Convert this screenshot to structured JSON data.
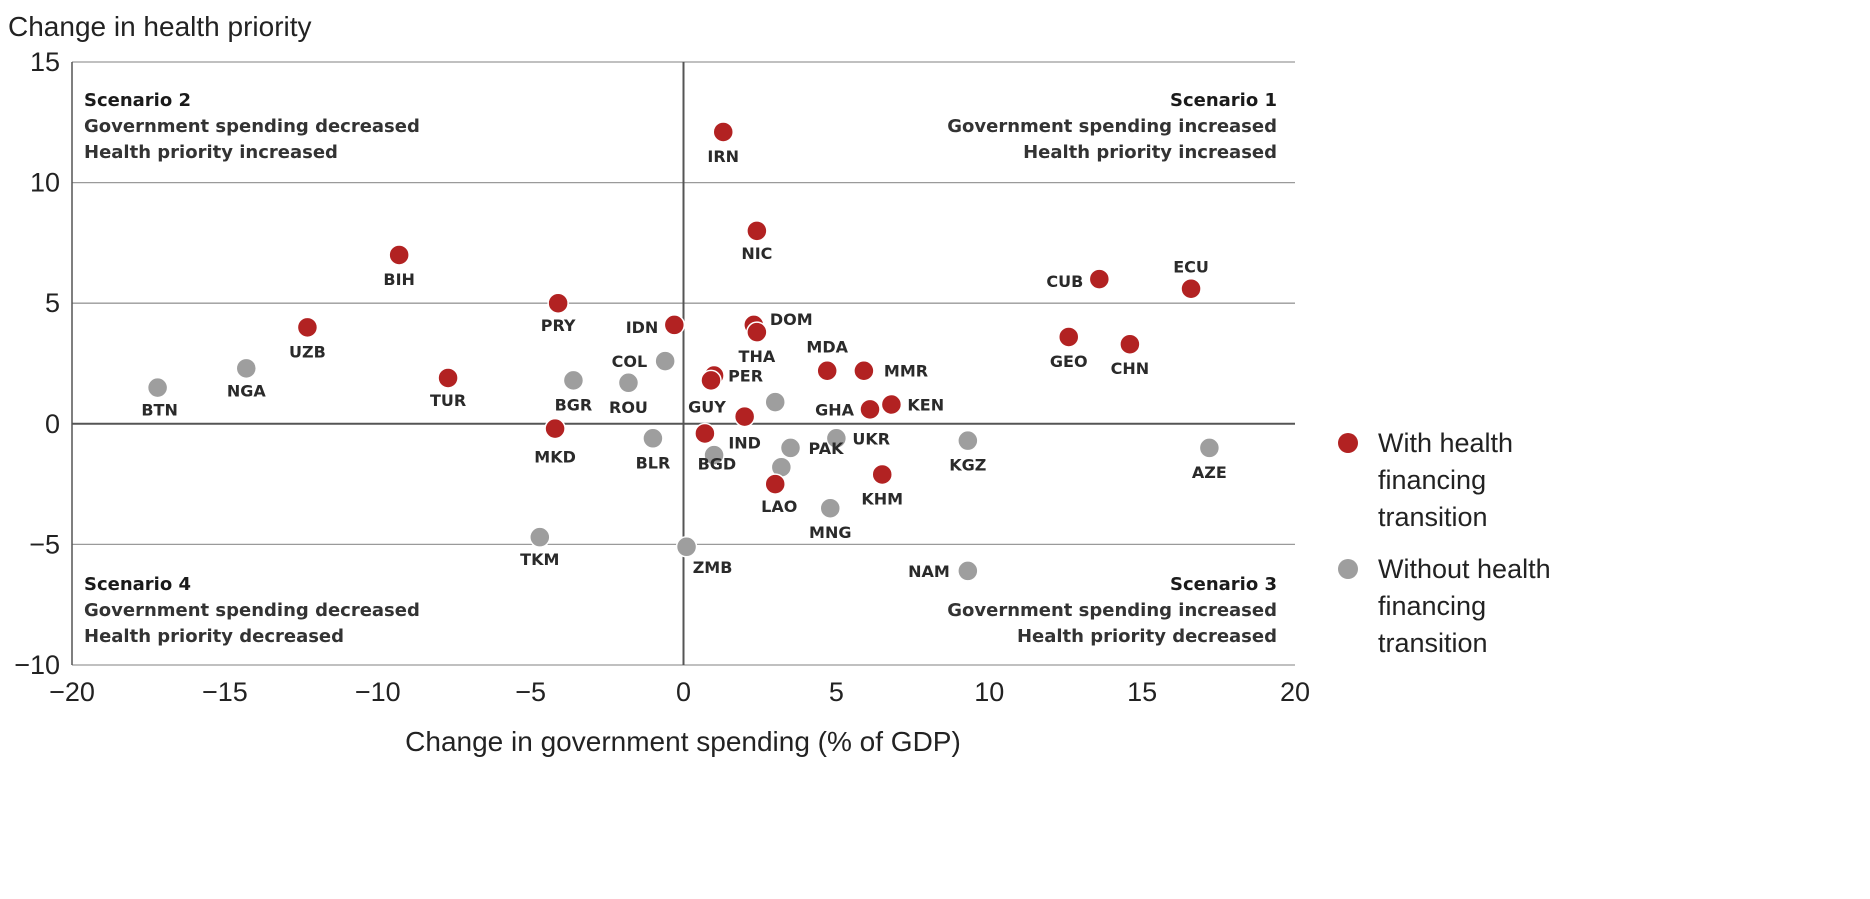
{
  "chart_data": {
    "type": "scatter",
    "ylabel": "Change in health priority",
    "xlabel": "Change in government spending (% of GDP)",
    "xlim": [
      -20,
      20
    ],
    "ylim": [
      -10,
      15
    ],
    "xticks": [
      -20,
      -15,
      -10,
      -5,
      0,
      5,
      10,
      15,
      20
    ],
    "yticks": [
      -10,
      -5,
      0,
      5,
      10,
      15
    ],
    "xtick_labels": [
      "−20",
      "−15",
      "−10",
      "−5",
      "0",
      "5",
      "10",
      "15",
      "20"
    ],
    "ytick_labels": [
      "−10",
      "−5",
      "0",
      "5",
      "10",
      "15"
    ],
    "grid": "horizontal",
    "legend_position": "right",
    "colors": {
      "with": "#b22222",
      "without": "#9e9e9e"
    },
    "series": [
      {
        "name": "With health financing transition",
        "legend_lines": [
          "With health",
          "financing",
          "transition"
        ],
        "color": "#b22222",
        "points": [
          {
            "label": "IRN",
            "x": 1.3,
            "y": 12.1
          },
          {
            "label": "NIC",
            "x": 2.4,
            "y": 8.0
          },
          {
            "label": "BIH",
            "x": -9.3,
            "y": 7.0
          },
          {
            "label": "CUB",
            "x": 13.6,
            "y": 6.0
          },
          {
            "label": "ECU",
            "x": 16.6,
            "y": 5.6
          },
          {
            "label": "PRY",
            "x": -4.1,
            "y": 5.0
          },
          {
            "label": "IDN",
            "x": -0.3,
            "y": 4.1
          },
          {
            "label": "DOM",
            "x": 2.3,
            "y": 4.1
          },
          {
            "label": "UZB",
            "x": -12.3,
            "y": 4.0
          },
          {
            "label": "THA",
            "x": 2.4,
            "y": 3.8
          },
          {
            "label": "GEO",
            "x": 12.6,
            "y": 3.6
          },
          {
            "label": "CHN",
            "x": 14.6,
            "y": 3.3
          },
          {
            "label": "MDA",
            "x": 4.7,
            "y": 2.2
          },
          {
            "label": "MMR",
            "x": 5.9,
            "y": 2.2
          },
          {
            "label": "PER",
            "x": 1.0,
            "y": 2.0
          },
          {
            "label": "TUR",
            "x": -7.7,
            "y": 1.9
          },
          {
            "label": "GUY",
            "x": 0.9,
            "y": 1.8
          },
          {
            "label": "GHA",
            "x": 6.1,
            "y": 0.6
          },
          {
            "label": "KEN",
            "x": 6.8,
            "y": 0.8
          },
          {
            "label": "IND",
            "x": 2.0,
            "y": 0.3
          },
          {
            "label": "MKD",
            "x": -4.2,
            "y": -0.2
          },
          {
            "label": "BGD",
            "x": 0.7,
            "y": -0.4
          },
          {
            "label": "KHM",
            "x": 6.5,
            "y": -2.1
          },
          {
            "label": "LAO",
            "x": 3.0,
            "y": -2.5
          }
        ]
      },
      {
        "name": "Without health financing transition",
        "legend_lines": [
          "Without health",
          "financing",
          "transition"
        ],
        "color": "#9e9e9e",
        "points": [
          {
            "label": "BTN",
            "x": -17.2,
            "y": 1.5
          },
          {
            "label": "NGA",
            "x": -14.3,
            "y": 2.3
          },
          {
            "label": "BGR",
            "x": -3.6,
            "y": 1.8
          },
          {
            "label": "ROU",
            "x": -1.8,
            "y": 1.7
          },
          {
            "label": "COL",
            "x": -0.6,
            "y": 2.6
          },
          {
            "label": "",
            "x": 3.0,
            "y": 0.9
          },
          {
            "label": "UKR",
            "x": 5.0,
            "y": -0.6
          },
          {
            "label": "KGZ",
            "x": 9.3,
            "y": -0.7
          },
          {
            "label": "AZE",
            "x": 17.2,
            "y": -1.0
          },
          {
            "label": "BLR",
            "x": -1.0,
            "y": -0.6
          },
          {
            "label": "",
            "x": 1.0,
            "y": -1.3
          },
          {
            "label": "PAK",
            "x": 3.5,
            "y": -1.0
          },
          {
            "label": "",
            "x": 3.2,
            "y": -1.8
          },
          {
            "label": "MNG",
            "x": 4.8,
            "y": -3.5
          },
          {
            "label": "TKM",
            "x": -4.7,
            "y": -4.7
          },
          {
            "label": "ZMB",
            "x": 0.1,
            "y": -5.1
          },
          {
            "label": "NAM",
            "x": 9.3,
            "y": -6.1
          }
        ]
      }
    ],
    "annotations": [
      {
        "pos": "top-left",
        "title": "Scenario 2",
        "lines": [
          "Government spending decreased",
          "Health priority increased"
        ]
      },
      {
        "pos": "top-right",
        "title": "Scenario 1",
        "lines": [
          "Government spending increased",
          "Health priority increased"
        ]
      },
      {
        "pos": "bottom-right",
        "title": "Scenario 3",
        "lines": [
          "Government spending increased",
          "Health priority decreased"
        ]
      },
      {
        "pos": "bottom-left",
        "title": "Scenario 4",
        "lines": [
          "Government spending decreased",
          "Health priority decreased"
        ]
      }
    ]
  }
}
